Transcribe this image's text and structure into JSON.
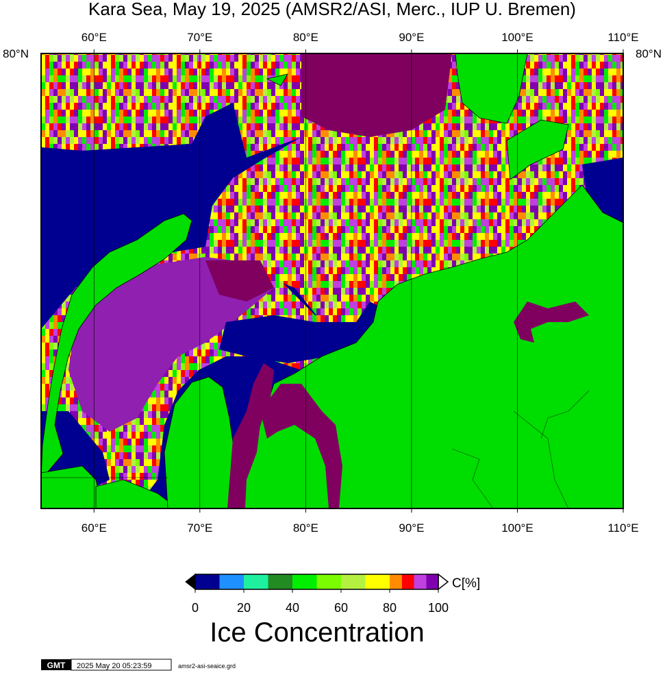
{
  "title": "Kara Sea, May 19, 2025 (AMSR2/ASI, Merc., IUP U. Bremen)",
  "map": {
    "lonlim": [
      55,
      110
    ],
    "lonticks": [
      {
        "value": 60,
        "label": "60°E"
      },
      {
        "value": 70,
        "label": "70°E"
      },
      {
        "value": 80,
        "label": "80°E"
      },
      {
        "value": 90,
        "label": "90°E"
      },
      {
        "value": 100,
        "label": "100°E"
      },
      {
        "value": 110,
        "label": "110°E"
      }
    ],
    "lat_label": "80°N"
  },
  "colorbar": {
    "range": [
      0,
      100
    ],
    "ticks": [
      0,
      20,
      40,
      60,
      80,
      100
    ],
    "unit": "C[%]",
    "bounds": [
      0,
      10,
      20,
      30,
      40,
      50,
      60,
      70,
      80,
      85,
      90,
      95,
      100
    ],
    "colors": [
      "#000090",
      "#1e90ff",
      "#1ef0a0",
      "#228b22",
      "#00ee00",
      "#7cfc00",
      "#b4f040",
      "#ffff00",
      "#ff8c00",
      "#ff0000",
      "#c040e0",
      "#8000b0"
    ],
    "label": "Ice Concentration"
  },
  "footer": {
    "logo": "GMT",
    "timestamp": "2025 May 20 05:23:59",
    "file": "amsr2-asi-seaice.grd"
  }
}
